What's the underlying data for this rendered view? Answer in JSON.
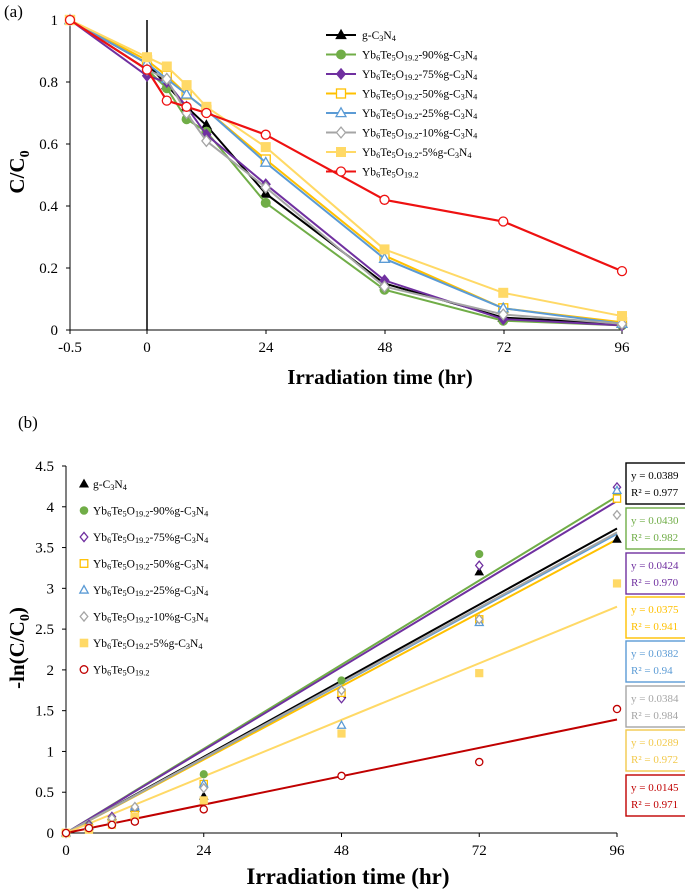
{
  "chart_data": [
    {
      "panel": "(a)",
      "type": "line",
      "xlabel": "Irradiation time (hr)",
      "ylabel": "C/C0",
      "x_ticks": [
        "-0.5",
        "0",
        "24",
        "48",
        "72",
        "96"
      ],
      "y_ticks": [
        "0",
        "0.2",
        "0.4",
        "0.6",
        "0.8",
        "1"
      ],
      "ylim": [
        0,
        1
      ],
      "series": [
        {
          "name": "g-C3N4",
          "color": "#000000",
          "marker": "triangle",
          "x": [
            -0.5,
            0,
            4,
            8,
            12,
            24,
            48,
            72,
            96
          ],
          "y": [
            1,
            0.86,
            0.79,
            0.72,
            0.66,
            0.44,
            0.15,
            0.04,
            0.02
          ]
        },
        {
          "name": "Yb6Te5O19.2-90%g-C3N4",
          "color": "#70AD47",
          "marker": "circle",
          "x": [
            -0.5,
            0,
            4,
            8,
            12,
            24,
            48,
            72,
            96
          ],
          "y": [
            1,
            0.84,
            0.78,
            0.68,
            0.64,
            0.41,
            0.13,
            0.03,
            0.015
          ]
        },
        {
          "name": "Yb6Te5O19.2-75%g-C3N4",
          "color": "#7030A0",
          "marker": "diamond",
          "x": [
            -0.5,
            0,
            4,
            8,
            12,
            24,
            48,
            72,
            96
          ],
          "y": [
            1,
            0.82,
            0.8,
            0.72,
            0.63,
            0.47,
            0.16,
            0.035,
            0.015
          ]
        },
        {
          "name": "Yb6Te5O19.2-50%g-C3N4",
          "color": "#FFC000",
          "marker": "square-open",
          "x": [
            -0.5,
            0,
            4,
            8,
            12,
            24,
            48,
            72,
            96
          ],
          "y": [
            1,
            0.87,
            0.82,
            0.76,
            0.71,
            0.55,
            0.24,
            0.07,
            0.025
          ]
        },
        {
          "name": "Yb6Te5O19.2-25%g-C3N4",
          "color": "#5B9BD5",
          "marker": "triangle-open",
          "x": [
            -0.5,
            0,
            4,
            8,
            12,
            24,
            48,
            72,
            96
          ],
          "y": [
            1,
            0.86,
            0.81,
            0.76,
            0.71,
            0.54,
            0.23,
            0.07,
            0.02
          ]
        },
        {
          "name": "Yb6Te5O19.2-10%g-C3N4",
          "color": "#A5A5A5",
          "marker": "diamond-open",
          "x": [
            -0.5,
            0,
            4,
            8,
            12,
            24,
            48,
            72,
            96
          ],
          "y": [
            1,
            0.84,
            0.81,
            0.7,
            0.61,
            0.46,
            0.14,
            0.05,
            0.02
          ]
        },
        {
          "name": "Yb6Te5O19.2-5%g-C3N4",
          "color": "#FFD966",
          "marker": "square",
          "x": [
            -0.5,
            0,
            4,
            8,
            12,
            24,
            48,
            72,
            96
          ],
          "y": [
            1,
            0.88,
            0.85,
            0.79,
            0.72,
            0.59,
            0.26,
            0.12,
            0.045
          ]
        },
        {
          "name": "Yb6Te5O19.2",
          "color": "#EE1111",
          "marker": "circle-open",
          "x": [
            -0.5,
            0,
            4,
            8,
            12,
            24,
            48,
            72,
            96
          ],
          "y": [
            1,
            0.84,
            0.74,
            0.72,
            0.7,
            0.63,
            0.42,
            0.35,
            0.19
          ]
        }
      ]
    },
    {
      "panel": "(b)",
      "type": "scatter",
      "xlabel": "Irradiation time (hr)",
      "ylabel": "-ln(C/C0)",
      "x_ticks": [
        "0",
        "24",
        "48",
        "72",
        "96"
      ],
      "y_ticks": [
        "0",
        "0.5",
        "1",
        "1.5",
        "2",
        "2.5",
        "3",
        "3.5",
        "4",
        "4.5"
      ],
      "xlim": [
        0,
        96
      ],
      "ylim": [
        0,
        4.5
      ],
      "series": [
        {
          "name": "g-C3N4",
          "color": "#000000",
          "marker": "triangle",
          "x": [
            0,
            4,
            8,
            12,
            24,
            48,
            72,
            96
          ],
          "y": [
            0,
            0.1,
            0.2,
            0.3,
            0.45,
            1.7,
            3.2,
            3.6
          ],
          "slope": 0.0389,
          "eq": "y = 0.0389",
          "r2": "R² = 0.977"
        },
        {
          "name": "Yb6Te5O19.2-90%g-C3N4",
          "color": "#70AD47",
          "marker": "circle",
          "x": [
            0,
            4,
            8,
            12,
            24,
            48,
            72,
            96
          ],
          "y": [
            0,
            0.1,
            0.18,
            0.28,
            0.72,
            1.87,
            3.42,
            4.15
          ],
          "slope": 0.043,
          "eq": "y = 0.0430",
          "r2": "R² = 0.982"
        },
        {
          "name": "Yb6Te5O19.2-75%g-C3N4",
          "color": "#7030A0",
          "marker": "diamond-open",
          "x": [
            0,
            4,
            8,
            12,
            24,
            48,
            72,
            96
          ],
          "y": [
            0,
            0.1,
            0.2,
            0.3,
            0.58,
            1.65,
            3.28,
            4.24
          ],
          "slope": 0.0424,
          "eq": "y = 0.0424",
          "r2": "R² = 0.970"
        },
        {
          "name": "Yb6Te5O19.2-50%g-C3N4",
          "color": "#FFC000",
          "marker": "square-open",
          "x": [
            0,
            4,
            8,
            12,
            24,
            48,
            72,
            96
          ],
          "y": [
            0,
            0.06,
            0.14,
            0.22,
            0.6,
            1.72,
            2.62,
            4.1
          ],
          "slope": 0.0375,
          "eq": "y = 0.0375",
          "r2": "R² = 0.941"
        },
        {
          "name": "Yb6Te5O19.2-25%g-C3N4",
          "color": "#5B9BD5",
          "marker": "triangle-open",
          "x": [
            0,
            4,
            8,
            12,
            24,
            48,
            72,
            96
          ],
          "y": [
            0,
            0.08,
            0.16,
            0.32,
            0.6,
            1.32,
            2.58,
            4.2
          ],
          "slope": 0.0382,
          "eq": "y = 0.0382",
          "r2": "R² = 0.94"
        },
        {
          "name": "Yb6Te5O19.2-10%g-C3N4",
          "color": "#A5A5A5",
          "marker": "diamond-open",
          "x": [
            0,
            4,
            8,
            12,
            24,
            48,
            72,
            96
          ],
          "y": [
            0,
            0.08,
            0.18,
            0.32,
            0.55,
            1.75,
            2.62,
            3.9
          ],
          "slope": 0.0384,
          "eq": "y = 0.0384",
          "r2": "R² = 0.984"
        },
        {
          "name": "Yb6Te5O19.2-5%g-C3N4",
          "color": "#FFD966",
          "marker": "square",
          "x": [
            0,
            4,
            8,
            12,
            24,
            48,
            72,
            96
          ],
          "y": [
            0,
            0.04,
            0.1,
            0.2,
            0.4,
            1.22,
            1.96,
            3.06
          ],
          "slope": 0.0289,
          "eq": "y = 0.0289",
          "r2": "R² = 0.972"
        },
        {
          "name": "Yb6Te5O19.2",
          "color": "#C00000",
          "marker": "circle-open",
          "x": [
            0,
            4,
            8,
            12,
            24,
            48,
            72,
            96
          ],
          "y": [
            0,
            0.06,
            0.1,
            0.14,
            0.29,
            0.7,
            0.87,
            1.52
          ],
          "slope": 0.0145,
          "eq": "y = 0.0145",
          "r2": "R² = 0.971"
        }
      ]
    }
  ]
}
